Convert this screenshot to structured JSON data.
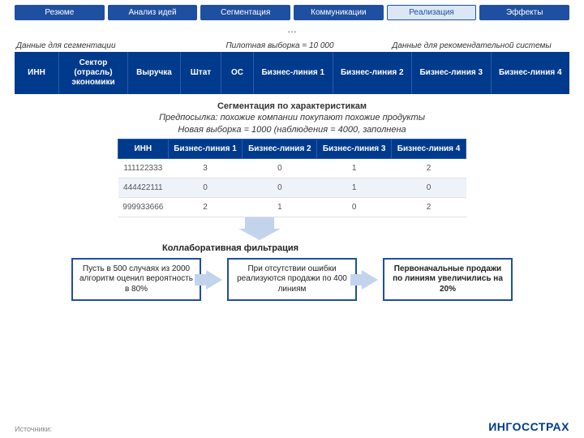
{
  "nav": {
    "tabs": [
      "Резюме",
      "Анализ идей",
      "Сегментация",
      "Коммуникации",
      "Реализация",
      "Эффекты"
    ],
    "active_index": 4
  },
  "ellipsis": "…",
  "labels": {
    "left": "Данные для сегментации",
    "mid": "Пилотная выборка = 10 000",
    "right": "Данные для рекомендательной системы"
  },
  "main_header": {
    "cols": [
      "ИНН",
      "Сектор (отрасль) экономики",
      "Выручка",
      "Штат",
      "ОС",
      "Бизнес-линия 1",
      "Бизнес-линия 2",
      "Бизнес-линия 3",
      "Бизнес-линия 4"
    ],
    "bg": "#003a8c"
  },
  "seg": {
    "title": "Сегментация по характеристикам",
    "premise": "Предпосылка: похожие компании покупают похожие продукты",
    "sample": "Новая выборка = 1000 (наблюдения = 4000, заполнена"
  },
  "inner": {
    "cols": [
      "ИНН",
      "Бизнес-линия 1",
      "Бизнес-линия 2",
      "Бизнес-линия 3",
      "Бизнес-линия 4"
    ],
    "rows": [
      [
        "111122333",
        "3",
        "0",
        "1",
        "2"
      ],
      [
        "444422111",
        "0",
        "0",
        "1",
        "0"
      ],
      [
        "999933666",
        "2",
        "1",
        "0",
        "2"
      ]
    ]
  },
  "collab_label": "Коллаборативная фильтрация",
  "flow": {
    "box1": "Пусть в 500 случаях из 2000 алгоритм оценил вероятность в 80%",
    "box2": "При отсутствии ошибки реализуются продажи по 400 линиям",
    "box3": "Первоначальные продажи по линиям увеличились на 20%"
  },
  "footer": {
    "sources": "Источники:",
    "brand": "ИНГОССТРАХ"
  }
}
